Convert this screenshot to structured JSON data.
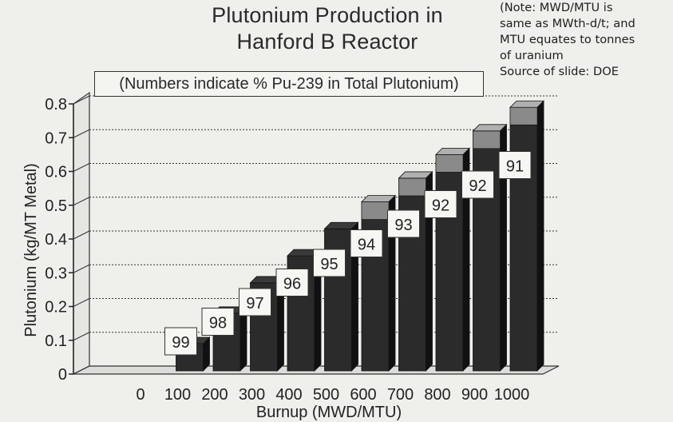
{
  "title_lines": [
    "Plutonium Production in",
    "Hanford B Reactor"
  ],
  "subtitle": "(Numbers indicate % Pu-239 in Total Plutonium)",
  "note_lines": [
    "(Note: MWD/MTU is",
    "same as MWth-d/t; and",
    "MTU equates to  tonnes",
    "of uranium",
    "Source of slide: DOE"
  ],
  "colors": {
    "bar_front": "#2b2b2b",
    "bar_side": "#111111",
    "bar_top": "#3a3a3a",
    "cap_front": "#8a8a8a",
    "cap_top": "#b0b0b0",
    "label_box": "#f6f6f3",
    "grid": "#333333"
  },
  "chart_data": {
    "type": "bar",
    "title": "Plutonium Production in Hanford B Reactor",
    "subtitle": "(Numbers indicate % Pu-239 in Total Plutonium)",
    "xlabel": "Burnup (MWD/MTU)",
    "ylabel": "Plutonium (kg/MT Metal)",
    "categories": [
      "0",
      "100",
      "200",
      "300",
      "400",
      "500",
      "600",
      "700",
      "800",
      "900",
      "1000"
    ],
    "values": [
      0,
      0.09,
      0.18,
      0.27,
      0.35,
      0.43,
      0.51,
      0.58,
      0.65,
      0.72,
      0.79
    ],
    "pu239_percent": [
      null,
      99,
      98,
      97,
      96,
      95,
      94,
      93,
      92,
      92,
      91
    ],
    "y_ticks": [
      "0",
      "0.1",
      "0.2",
      "0.3",
      "0.4",
      "0.5",
      "0.6",
      "0.7",
      "0.8"
    ],
    "ylim": [
      0,
      0.8
    ],
    "grid": true
  }
}
